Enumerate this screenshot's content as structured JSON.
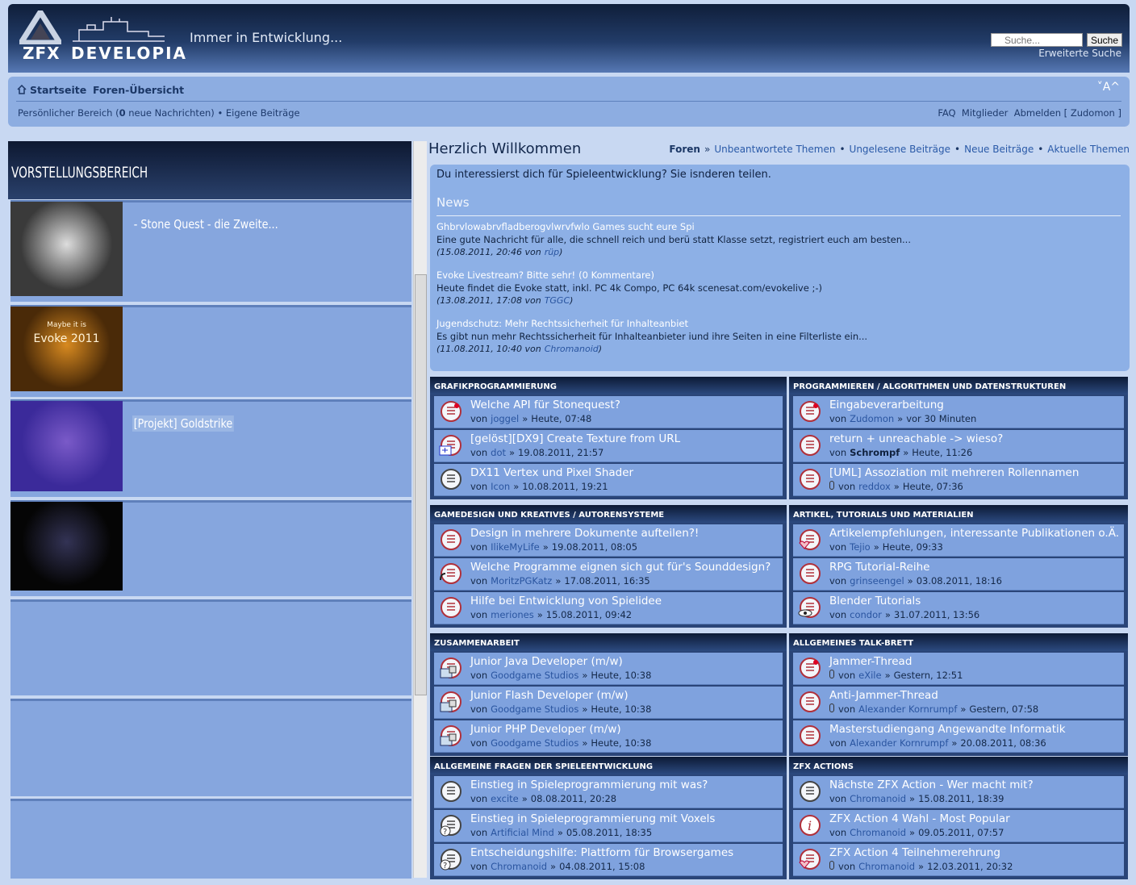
{
  "header": {
    "logo": [
      "ZFX",
      "DEVELOPIA"
    ],
    "tagline": "Immer in Entwicklung...",
    "search_placeholder": "Suche...",
    "search_button": "Suche",
    "advanced_search": "Erweiterte Suche"
  },
  "navbar": {
    "breadcrumbs": [
      "Startseite",
      "Foren-Übersicht"
    ],
    "font_size": "˅A^",
    "personal": "Persönlicher Bereich (",
    "new_count": "0",
    "new_messages": "neue Nachrichten)",
    "sep": "•",
    "own_posts": "Eigene Beiträge",
    "right": [
      "FAQ",
      "Mitglieder",
      "Abmelden [ Zudomon ]"
    ]
  },
  "showcase": {
    "title": "VORSTELLUNGSBEREICH",
    "items": [
      {
        "label": "- Stone Quest - die Zweite..."
      },
      {
        "thumb_text": [
          "Maybe it is",
          "Evoke 2011"
        ]
      },
      {
        "label": "[Projekt] Goldstrike"
      }
    ]
  },
  "welcome": {
    "title": "Herzlich Willkommen",
    "links": [
      "Foren",
      "Unbeantwortete Themen",
      "Ungelesene Beiträge",
      "Neue Beiträge",
      "Aktuelle Themen"
    ],
    "first_sep": "»",
    "link_sep": "•",
    "intro": "Du interessierst dich für Spieleentwicklung? Sie isnderen teilen.",
    "news_title": "News",
    "news": [
      {
        "title": "Ghbrvlowabrvfladberogvlwrvfwlo Games sucht eure Spi",
        "text": "Eine gute Nachricht für alle, die schnell reich und berü statt Klasse setzt, registriert euch am besten...",
        "meta": "(15.08.2011, 20:46 von",
        "author": "rüp",
        "close": ")"
      },
      {
        "title": "Evoke Livestream? Bitte sehr!",
        "comments": "(0 Kommentare)",
        "text": "Heute findet die Evoke statt, inkl. PC 4k Compo, PC 64k scenesat.com/evokelive ;-)",
        "meta": "(13.08.2011, 17:08 von",
        "author": "TGGC",
        "close": ")"
      },
      {
        "title": "Jugendschutz: Mehr Rechtssicherheit für Inhalteanbiet",
        "text": "Es gibt nun mehr Rechtssicherheit für Inhalteanbieter iund ihre Seiten in eine Filterliste ein...",
        "meta": "(11.08.2011, 10:40 von",
        "author": "Chromanoid",
        "close": ")"
      }
    ]
  },
  "forums": {
    "by": "von",
    "sep": "»",
    "boards": [
      {
        "name": "GRAFIKPROGRAMMIERUNG",
        "topics": [
          {
            "title": "Welche API für Stonequest?",
            "author": "joggel",
            "time": "Heute, 07:48",
            "icon": "new"
          },
          {
            "title": "[gelöst][DX9] Create Texture from URL",
            "author": "dot",
            "time": "19.08.2011, 21:57",
            "icon": "cpp"
          },
          {
            "title": "DX11 Vertex und Pixel Shader",
            "author": "Icon",
            "time": "10.08.2011, 19:21",
            "icon": "read"
          }
        ]
      },
      {
        "name": "PROGRAMMIEREN / ALGORITHMEN UND DATENSTRUKTUREN",
        "topics": [
          {
            "title": "Eingabeverarbeitung",
            "author": "Zudomon",
            "time": "vor 30 Minuten",
            "icon": "new"
          },
          {
            "title": "return + unreachable -> wieso?",
            "author": "Schrompf",
            "time": "Heute, 11:26",
            "icon": "unread",
            "author_bold": true
          },
          {
            "title": "[UML] Assoziation mit mehreren Rollennamen",
            "author": "reddox",
            "time": "Heute, 07:36",
            "icon": "unread",
            "attachment": true
          }
        ]
      },
      {
        "name": "GAMEDESIGN UND KREATIVES / AUTORENSYSTEME",
        "topics": [
          {
            "title": "Design in mehrere Dokumente aufteilen?!",
            "author": "IlikeMyLife",
            "time": "19.08.2011, 08:05",
            "icon": "unread"
          },
          {
            "title": "Welche Programme eignen sich gut für's Sounddesign?",
            "author": "MoritzPGKatz",
            "time": "17.08.2011, 16:35",
            "icon": "sound"
          },
          {
            "title": "Hilfe bei Entwicklung von Spielidee",
            "author": "meriones",
            "time": "15.08.2011, 09:42",
            "icon": "unread"
          }
        ]
      },
      {
        "name": "ARTIKEL, TUTORIALS UND MATERIALIEN",
        "topics": [
          {
            "title": "Artikelempfehlungen, interessante Publikationen o.Ä.",
            "author": "Tejio",
            "time": "Heute, 09:33",
            "icon": "heart"
          },
          {
            "title": "RPG Tutorial-Reihe",
            "author": "grinseengel",
            "time": "03.08.2011, 18:16",
            "icon": "unread"
          },
          {
            "title": "Blender Tutorials",
            "author": "condor",
            "time": "31.07.2011, 13:56",
            "icon": "eye"
          }
        ]
      },
      {
        "name": "ZUSAMMENARBEIT",
        "topics": [
          {
            "title": "Junior Java Developer (m/w)",
            "author": "Goodgame Studios",
            "time": "Heute, 10:38",
            "icon": "lock"
          },
          {
            "title": "Junior Flash Developer (m/w)",
            "author": "Goodgame Studios",
            "time": "Heute, 10:38",
            "icon": "lock"
          },
          {
            "title": "Junior PHP Developer (m/w)",
            "author": "Goodgame Studios",
            "time": "Heute, 10:38",
            "icon": "lock"
          }
        ]
      },
      {
        "name": "ALLGEMEINES TALK-BRETT",
        "topics": [
          {
            "title": "Jammer-Thread",
            "author": "eXile",
            "time": "Gestern, 12:51",
            "icon": "new",
            "attachment": true
          },
          {
            "title": "Anti-Jammer-Thread",
            "author": "Alexander Kornrumpf",
            "time": "Gestern, 07:58",
            "icon": "unread",
            "attachment": true
          },
          {
            "title": "Masterstudiengang Angewandte Informatik",
            "author": "Alexander Kornrumpf",
            "time": "20.08.2011, 08:36",
            "icon": "unread"
          }
        ]
      },
      {
        "name": "ALLGEMEINE FRAGEN DER SPIELEENTWICKLUNG",
        "topics": [
          {
            "title": "Einstieg in Spieleprogrammierung mit was?",
            "author": "excite",
            "time": "08.08.2011, 20:28",
            "icon": "read"
          },
          {
            "title": "Einstieg in Spieleprogrammierung mit Voxels",
            "author": "Artificial Mind",
            "time": "05.08.2011, 18:35",
            "icon": "question"
          },
          {
            "title": "Entscheidungshilfe: Plattform für Browsergames",
            "author": "Chromanoid",
            "time": "04.08.2011, 15:08",
            "icon": "question"
          }
        ]
      },
      {
        "name": "ZFX ACTIONS",
        "topics": [
          {
            "title": "Nächste ZFX Action - Wer macht mit?",
            "author": "Chromanoid",
            "time": "15.08.2011, 18:39",
            "icon": "read"
          },
          {
            "title": "ZFX Action 4 Wahl - Most Popular",
            "author": "Chromanoid",
            "time": "09.05.2011, 07:57",
            "icon": "info"
          },
          {
            "title": "ZFX Action 4 Teilnehmerehrung",
            "author": "Chromanoid",
            "time": "12.03.2011, 20:32",
            "icon": "heart",
            "attachment": true
          }
        ]
      }
    ]
  }
}
